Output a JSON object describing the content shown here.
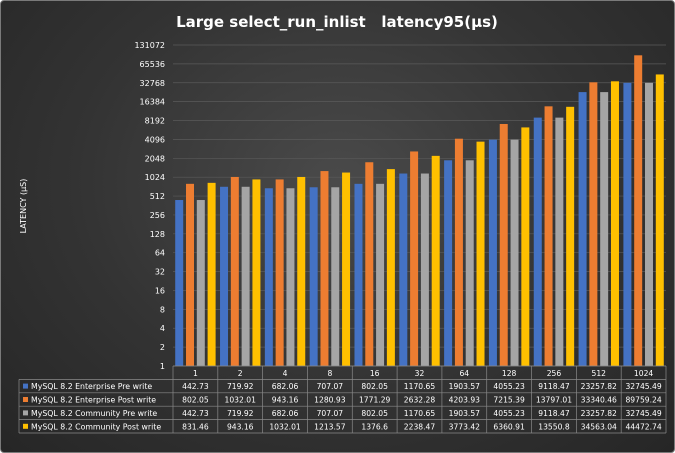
{
  "chart_data": {
    "type": "bar",
    "title": "Large select_run_inlist   latency95(µs)",
    "ylabel": "LATENCY (µS)",
    "yscale": "log2",
    "ylim": [
      1,
      131072
    ],
    "yticks": [
      "1",
      "2",
      "4",
      "8",
      "16",
      "32",
      "64",
      "128",
      "256",
      "512",
      "1024",
      "2048",
      "4096",
      "8192",
      "16384",
      "32768",
      "65536",
      "131072"
    ],
    "categories": [
      "1",
      "2",
      "4",
      "8",
      "16",
      "32",
      "64",
      "128",
      "256",
      "512",
      "1024"
    ],
    "grid": true,
    "legend_placement": "data-table",
    "series": [
      {
        "name": "MySQL 8.2 Enterprise Pre write",
        "color": "#4472c4",
        "values": [
          442.73,
          719.92,
          682.06,
          707.07,
          802.05,
          1170.65,
          1903.57,
          4055.23,
          9118.47,
          23257.82,
          32745.49
        ],
        "labels": [
          "442.73",
          "719.92",
          "682.06",
          "707.07",
          "802.05",
          "1170.65",
          "1903.57",
          "4055.23",
          "9118.47",
          "23257.82",
          "32745.49"
        ]
      },
      {
        "name": "MySQL 8.2 Enterprise Post write",
        "color": "#ed7d31",
        "values": [
          802.05,
          1032.01,
          943.16,
          1280.93,
          1771.29,
          2632.28,
          4203.93,
          7215.39,
          13797.01,
          33340.46,
          89759.24
        ],
        "labels": [
          "802.05",
          "1032.01",
          "943.16",
          "1280.93",
          "1771.29",
          "2632.28",
          "4203.93",
          "7215.39",
          "13797.01",
          "33340.46",
          "89759.24"
        ]
      },
      {
        "name": "MySQL 8.2 Community Pre write",
        "color": "#a5a5a5",
        "values": [
          442.73,
          719.92,
          682.06,
          707.07,
          802.05,
          1170.65,
          1903.57,
          4055.23,
          9118.47,
          23257.82,
          32745.49
        ],
        "labels": [
          "442.73",
          "719.92",
          "682.06",
          "707.07",
          "802.05",
          "1170.65",
          "1903.57",
          "4055.23",
          "9118.47",
          "23257.82",
          "32745.49"
        ]
      },
      {
        "name": "MySQL 8.2 Community Post write",
        "color": "#ffc000",
        "values": [
          831.46,
          943.16,
          1032.01,
          1213.57,
          1376.6,
          2238.47,
          3773.42,
          6360.91,
          13550.8,
          34563.04,
          44472.74
        ],
        "labels": [
          "831.46",
          "943.16",
          "1032.01",
          "1213.57",
          "1376.6",
          "2238.47",
          "3773.42",
          "6360.91",
          "13550.8",
          "34563.04",
          "44472.74"
        ]
      }
    ]
  }
}
